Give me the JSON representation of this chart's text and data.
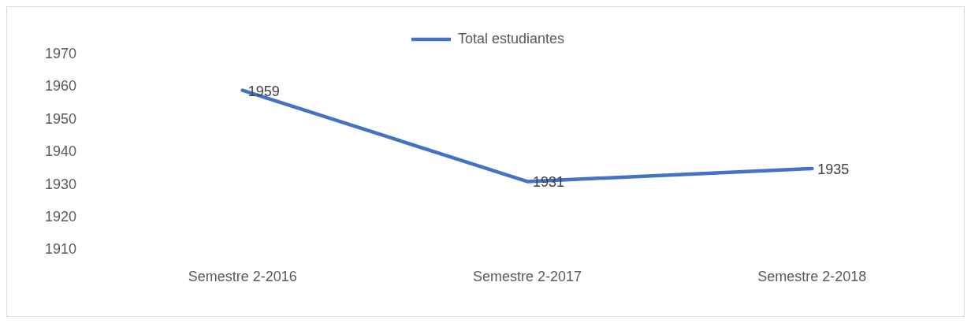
{
  "chart_data": {
    "type": "line",
    "categories": [
      "Semestre 2-2016",
      "Semestre 2-2017",
      "Semestre 2-2018"
    ],
    "series": [
      {
        "name": "Total estudiantes",
        "color": "#4472c4",
        "values": [
          1959,
          1931,
          1935
        ]
      }
    ],
    "ylim": [
      1910,
      1970
    ],
    "yticks": [
      1910,
      1920,
      1930,
      1940,
      1950,
      1960,
      1970
    ],
    "grid": false,
    "legend": "top",
    "marker": "none",
    "line_style": "solid",
    "data_labels": true
  }
}
